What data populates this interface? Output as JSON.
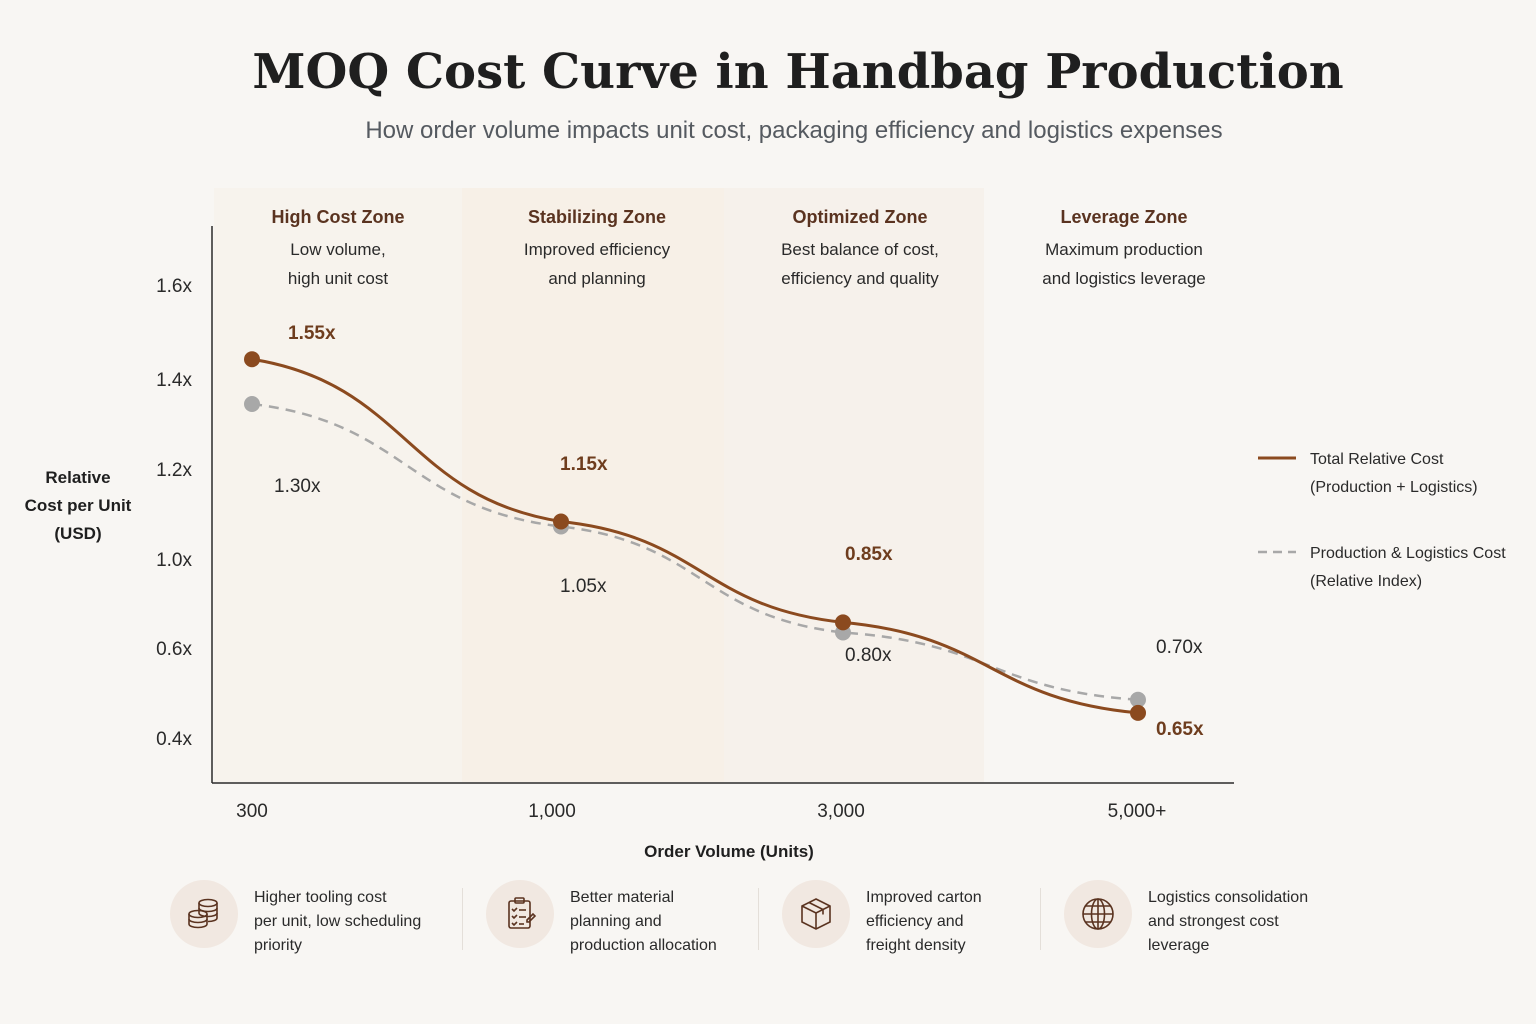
{
  "title": "MOQ Cost Curve in Handbag Production",
  "subtitle": "How order volume impacts unit cost, packaging efficiency and logistics expenses",
  "zones": [
    {
      "title": "High Cost Zone",
      "line1": "Low volume,",
      "line2": "high unit cost"
    },
    {
      "title": "Stabilizing Zone",
      "line1": "Improved efficiency",
      "line2": "and planning"
    },
    {
      "title": "Optimized Zone",
      "line1": "Best balance of cost,",
      "line2": "efficiency and quality"
    },
    {
      "title": "Leverage Zone",
      "line1": "Maximum production",
      "line2": "and logistics leverage"
    }
  ],
  "axis": {
    "ylabel_lines": [
      "Relative",
      "Cost per Unit",
      "(USD)"
    ],
    "xlabel": "Order Volume (Units)"
  },
  "legend": [
    {
      "line1": "Total Relative Cost",
      "line2": "(Production + Logistics)",
      "style": "solid",
      "color": "#8b4a1f"
    },
    {
      "line1": "Production & Logistics Cost",
      "line2": "(Relative Index)",
      "style": "dashed",
      "color": "#a8a8a8"
    }
  ],
  "colors": {
    "total": "#8b4a1f",
    "production": "#a8a8a8",
    "zone_title": "#5a3320"
  },
  "chart_data": {
    "type": "line",
    "title": "MOQ Cost Curve in Handbag Production",
    "subtitle": "How order volume impacts unit cost, packaging efficiency and logistics expenses",
    "xlabel": "Order Volume (Units)",
    "ylabel": "Relative Cost per Unit (USD)",
    "categories": [
      "300",
      "1,000",
      "3,000",
      "5,000+"
    ],
    "y_ticks": [
      "1.6x",
      "1.4x",
      "1.2x",
      "1.0x",
      "0.6x",
      "0.4x"
    ],
    "grid": false,
    "legend_position": "right",
    "series": [
      {
        "name": "Total Relative Cost (Production + Logistics)",
        "values": [
          1.55,
          1.15,
          0.85,
          0.65
        ],
        "labels": [
          "1.55x",
          "1.15x",
          "0.85x",
          "0.65x"
        ]
      },
      {
        "name": "Production & Logistics Cost (Relative Index)",
        "values": [
          1.3,
          1.05,
          0.8,
          0.7
        ],
        "labels": [
          "1.30x",
          "1.05x",
          "0.80x",
          "0.70x"
        ]
      }
    ]
  },
  "footer": [
    {
      "icon": "coins-stack-icon",
      "lines": [
        "Higher tooling cost",
        "per unit, low scheduling",
        "priority"
      ]
    },
    {
      "icon": "clipboard-checklist-icon",
      "lines": [
        "Better material",
        "planning and",
        "production allocation"
      ]
    },
    {
      "icon": "carton-box-icon",
      "lines": [
        "Improved carton",
        "efficiency and",
        "freight density"
      ]
    },
    {
      "icon": "globe-icon",
      "lines": [
        "Logistics consolidation",
        "and strongest cost",
        "leverage"
      ]
    }
  ]
}
